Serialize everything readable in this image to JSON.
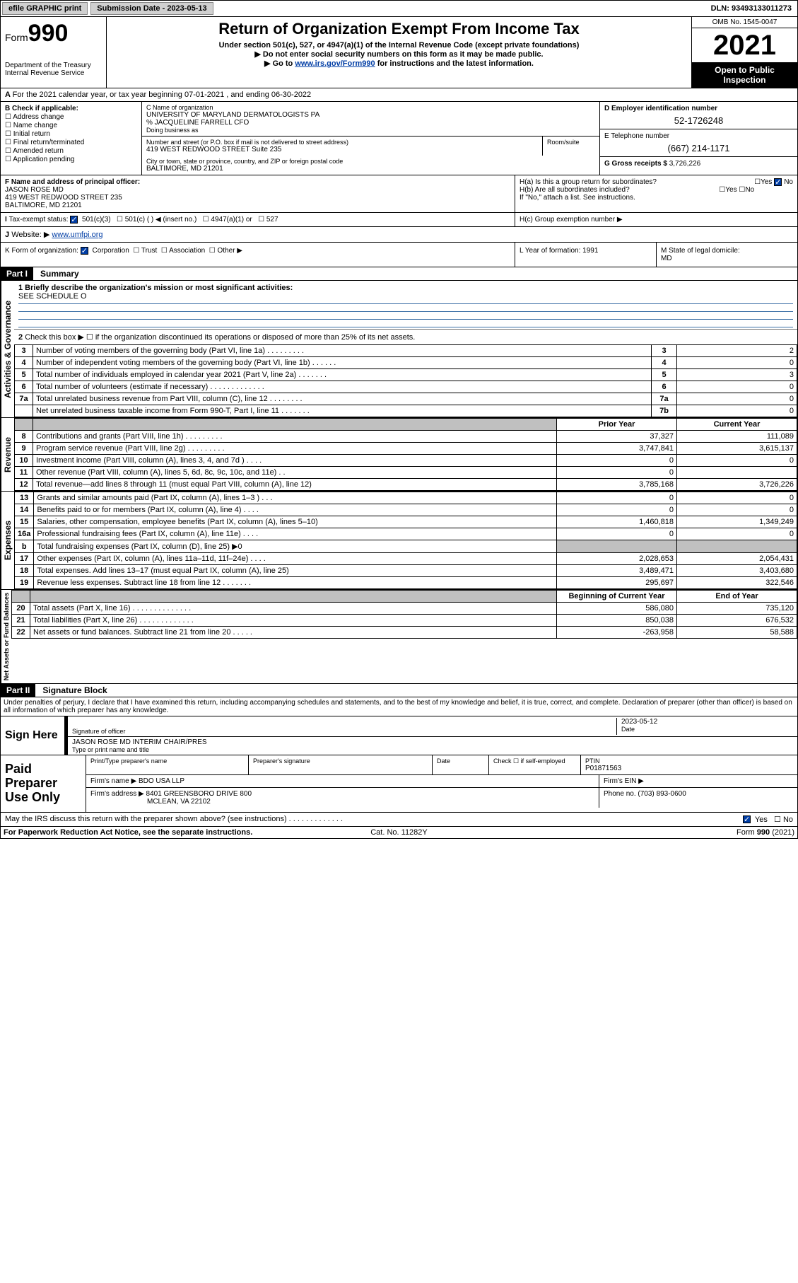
{
  "topbar": {
    "efile": "efile GRAPHIC print",
    "submission_label": "Submission Date - 2023-05-13",
    "dln": "DLN: 93493133011273"
  },
  "header": {
    "form_prefix": "Form",
    "form_num": "990",
    "dept": "Department of the Treasury",
    "irs": "Internal Revenue Service",
    "title": "Return of Organization Exempt From Income Tax",
    "sub1": "Under section 501(c), 527, or 4947(a)(1) of the Internal Revenue Code (except private foundations)",
    "sub2": "▶ Do not enter social security numbers on this form as it may be made public.",
    "sub3_pre": "▶ Go to ",
    "sub3_link": "www.irs.gov/Form990",
    "sub3_post": " for instructions and the latest information.",
    "omb": "OMB No. 1545-0047",
    "year": "2021",
    "open": "Open to Public Inspection"
  },
  "A": {
    "text": "For the 2021 calendar year, or tax year beginning 07-01-2021  , and ending 06-30-2022"
  },
  "B": {
    "label": "B Check if applicable:",
    "items": [
      "Address change",
      "Name change",
      "Initial return",
      "Final return/terminated",
      "Amended return",
      "Application pending"
    ]
  },
  "C": {
    "name_label": "C Name of organization",
    "name": "UNIVERSITY OF MARYLAND DERMATOLOGISTS PA",
    "care": "% JACQUELINE FARRELL CFO",
    "dba_label": "Doing business as",
    "addr_label": "Number and street (or P.O. box if mail is not delivered to street address)",
    "addr": "419 WEST REDWOOD STREET Suite 235",
    "room_label": "Room/suite",
    "city_label": "City or town, state or province, country, and ZIP or foreign postal code",
    "city": "BALTIMORE, MD  21201"
  },
  "D": {
    "label": "D Employer identification number",
    "val": "52-1726248"
  },
  "E": {
    "label": "E Telephone number",
    "val": "(667) 214-1171"
  },
  "G": {
    "label": "G Gross receipts $",
    "val": "3,726,226"
  },
  "F": {
    "label": "F Name and address of principal officer:",
    "name": "JASON ROSE MD",
    "addr1": "419 WEST REDWOOD STREET 235",
    "addr2": "BALTIMORE, MD  21201"
  },
  "H": {
    "a": "H(a)  Is this a group return for subordinates?",
    "a_yes": "Yes",
    "a_no": "No",
    "b": "H(b)  Are all subordinates included?",
    "b_yes": "Yes",
    "b_no": "No",
    "b_note": "If \"No,\" attach a list. See instructions.",
    "c": "H(c)  Group exemption number ▶"
  },
  "I": {
    "label": "Tax-exempt status:",
    "opts": [
      "501(c)(3)",
      "501(c) (  ) ◀ (insert no.)",
      "4947(a)(1) or",
      "527"
    ]
  },
  "J": {
    "label": "Website: ▶",
    "val": "www.umfpi.org"
  },
  "K": {
    "label": "K Form of organization:",
    "opts": [
      "Corporation",
      "Trust",
      "Association",
      "Other ▶"
    ]
  },
  "L": {
    "label": "L Year of formation:",
    "val": "1991"
  },
  "M": {
    "label": "M State of legal domicile:",
    "val": "MD"
  },
  "part1": {
    "hdr": "Part I",
    "title": "Summary",
    "q1_label": "1  Briefly describe the organization's mission or most significant activities:",
    "q1_val": "SEE SCHEDULE O",
    "q2": "Check this box ▶ ☐  if the organization discontinued its operations or disposed of more than 25% of its net assets.",
    "lines_top": [
      {
        "n": "3",
        "desc": "Number of voting members of the governing body (Part VI, line 1a)  .  .  .  .  .  .  .  .  .",
        "k": "3",
        "v": "2"
      },
      {
        "n": "4",
        "desc": "Number of independent voting members of the governing body (Part VI, line 1b)  .  .  .  .  .  .",
        "k": "4",
        "v": "0"
      },
      {
        "n": "5",
        "desc": "Total number of individuals employed in calendar year 2021 (Part V, line 2a)  .  .  .  .  .  .  .",
        "k": "5",
        "v": "3"
      },
      {
        "n": "6",
        "desc": "Total number of volunteers (estimate if necessary)  .  .  .  .  .  .  .  .  .  .  .  .  .",
        "k": "6",
        "v": "0"
      },
      {
        "n": "7a",
        "desc": "Total unrelated business revenue from Part VIII, column (C), line 12  .  .  .  .  .  .  .  .",
        "k": "7a",
        "v": "0"
      },
      {
        "n": "",
        "desc": "Net unrelated business taxable income from Form 990-T, Part I, line 11  .  .  .  .  .  .  .",
        "k": "7b",
        "v": "0"
      }
    ],
    "col_prior": "Prior Year",
    "col_current": "Current Year",
    "revenue": [
      {
        "n": "8",
        "desc": "Contributions and grants (Part VIII, line 1h)  .  .  .  .  .  .  .  .  .",
        "p": "37,327",
        "c": "111,089"
      },
      {
        "n": "9",
        "desc": "Program service revenue (Part VIII, line 2g)  .  .  .  .  .  .  .  .  .",
        "p": "3,747,841",
        "c": "3,615,137"
      },
      {
        "n": "10",
        "desc": "Investment income (Part VIII, column (A), lines 3, 4, and 7d )  .  .  .  .",
        "p": "0",
        "c": "0"
      },
      {
        "n": "11",
        "desc": "Other revenue (Part VIII, column (A), lines 5, 6d, 8c, 9c, 10c, and 11e)  .  .",
        "p": "0",
        "c": ""
      },
      {
        "n": "12",
        "desc": "Total revenue—add lines 8 through 11 (must equal Part VIII, column (A), line 12)",
        "p": "3,785,168",
        "c": "3,726,226"
      }
    ],
    "expenses": [
      {
        "n": "13",
        "desc": "Grants and similar amounts paid (Part IX, column (A), lines 1–3 )  .  .  .",
        "p": "0",
        "c": "0"
      },
      {
        "n": "14",
        "desc": "Benefits paid to or for members (Part IX, column (A), line 4)  .  .  .  .",
        "p": "0",
        "c": "0"
      },
      {
        "n": "15",
        "desc": "Salaries, other compensation, employee benefits (Part IX, column (A), lines 5–10)",
        "p": "1,460,818",
        "c": "1,349,249"
      },
      {
        "n": "16a",
        "desc": "Professional fundraising fees (Part IX, column (A), line 11e)  .  .  .  .",
        "p": "0",
        "c": "0"
      },
      {
        "n": "b",
        "desc": "Total fundraising expenses (Part IX, column (D), line 25) ▶0",
        "p": "",
        "c": "",
        "grey": true
      },
      {
        "n": "17",
        "desc": "Other expenses (Part IX, column (A), lines 11a–11d, 11f–24e)  .  .  .  .",
        "p": "2,028,653",
        "c": "2,054,431"
      },
      {
        "n": "18",
        "desc": "Total expenses. Add lines 13–17 (must equal Part IX, column (A), line 25)",
        "p": "3,489,471",
        "c": "3,403,680"
      },
      {
        "n": "19",
        "desc": "Revenue less expenses. Subtract line 18 from line 12  .  .  .  .  .  .  .",
        "p": "295,697",
        "c": "322,546"
      }
    ],
    "col_begin": "Beginning of Current Year",
    "col_end": "End of Year",
    "net": [
      {
        "n": "20",
        "desc": "Total assets (Part X, line 16)  .  .  .  .  .  .  .  .  .  .  .  .  .  .",
        "p": "586,080",
        "c": "735,120"
      },
      {
        "n": "21",
        "desc": "Total liabilities (Part X, line 26)  .  .  .  .  .  .  .  .  .  .  .  .  .",
        "p": "850,038",
        "c": "676,532"
      },
      {
        "n": "22",
        "desc": "Net assets or fund balances. Subtract line 21 from line 20  .  .  .  .  .",
        "p": "-263,958",
        "c": "58,588"
      }
    ],
    "vlabel_ag": "Activities & Governance",
    "vlabel_rev": "Revenue",
    "vlabel_exp": "Expenses",
    "vlabel_net": "Net Assets or Fund Balances"
  },
  "part2": {
    "hdr": "Part II",
    "title": "Signature Block",
    "declar": "Under penalties of perjury, I declare that I have examined this return, including accompanying schedules and statements, and to the best of my knowledge and belief, it is true, correct, and complete. Declaration of preparer (other than officer) is based on all information of which preparer has any knowledge.",
    "sign_here": "Sign Here",
    "sig_officer": "Signature of officer",
    "sig_date": "Date",
    "sig_date_val": "2023-05-12",
    "sig_name_title": "JASON ROSE MD INTERIM CHAIR/PRES",
    "sig_type": "Type or print name and title",
    "paid": "Paid Preparer Use Only",
    "p_name_label": "Print/Type preparer's name",
    "p_sig_label": "Preparer's signature",
    "p_date_label": "Date",
    "p_check": "Check ☐ if self-employed",
    "p_ptin_label": "PTIN",
    "p_ptin": "P01871563",
    "firm_name_label": "Firm's name   ▶",
    "firm_name": "BDO USA LLP",
    "firm_ein_label": "Firm's EIN ▶",
    "firm_addr_label": "Firm's address ▶",
    "firm_addr": "8401 GREENSBORO DRIVE 800",
    "firm_addr2": "MCLEAN, VA  22102",
    "firm_phone_label": "Phone no.",
    "firm_phone": "(703) 893-0600",
    "may_irs": "May the IRS discuss this return with the preparer shown above? (see instructions)  .  .  .  .  .  .  .  .  .  .  .  .  .",
    "may_yes": "Yes",
    "may_no": "No"
  },
  "footer": {
    "left": "For Paperwork Reduction Act Notice, see the separate instructions.",
    "mid": "Cat. No. 11282Y",
    "right": "Form 990 (2021)"
  }
}
